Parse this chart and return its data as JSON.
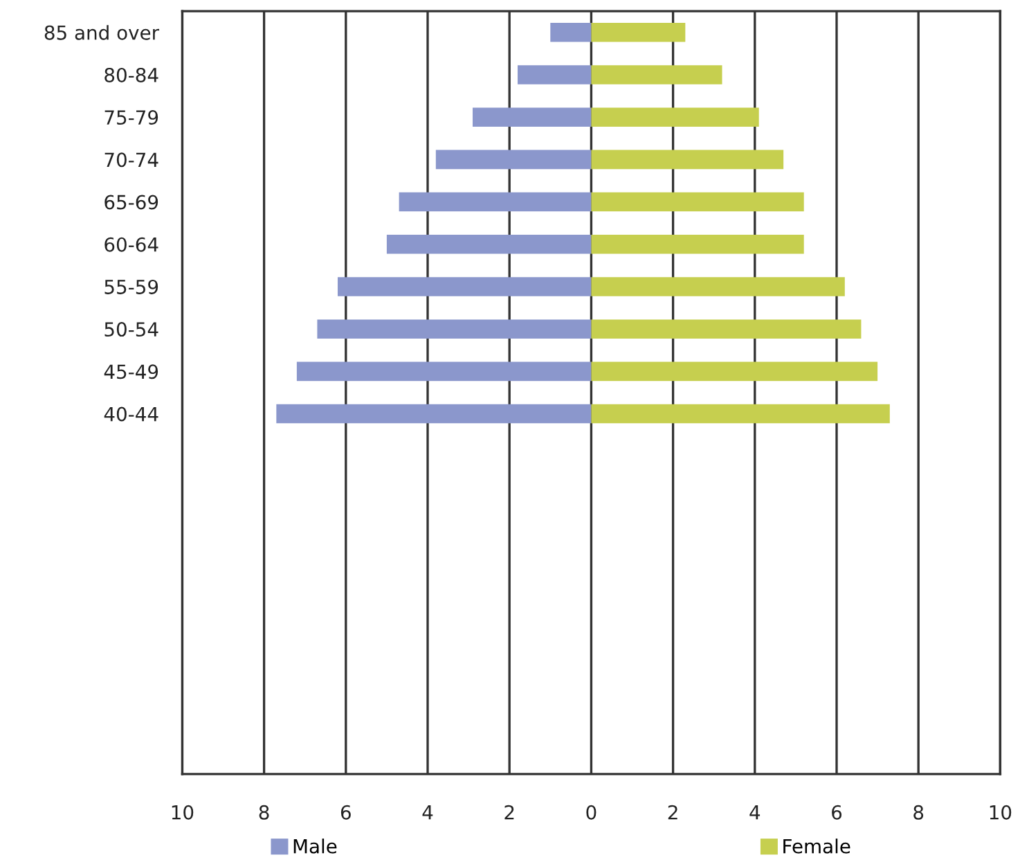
{
  "chart_data": {
    "type": "bar",
    "orientation": "horizontal",
    "categories": [
      "85 and over",
      "80-84",
      "75-79",
      "70-74",
      "65-69",
      "60-64",
      "55-59",
      "50-54",
      "45-49",
      "40-44",
      null,
      null,
      null,
      null,
      null,
      null,
      null,
      null
    ],
    "series": [
      {
        "name": "Male",
        "color": "#8b97cc",
        "values": [
          -1.0,
          -1.8,
          -2.9,
          -3.8,
          -4.7,
          -5.0,
          -6.2,
          -6.7,
          -7.2,
          -7.7,
          null,
          null,
          null,
          null,
          null,
          null,
          null,
          null
        ]
      },
      {
        "name": "Female",
        "color": "#c6cf4f",
        "values": [
          2.3,
          3.2,
          4.1,
          4.7,
          5.2,
          5.2,
          6.2,
          6.6,
          7.0,
          7.3,
          null,
          null,
          null,
          null,
          null,
          null,
          null,
          null
        ]
      }
    ],
    "xlim": [
      -10,
      10
    ],
    "xticks": [
      {
        "value": -10,
        "label": "10"
      },
      {
        "value": -8,
        "label": "8"
      },
      {
        "value": -6,
        "label": "6"
      },
      {
        "value": -4,
        "label": "4"
      },
      {
        "value": -2,
        "label": "2"
      },
      0,
      2,
      4,
      6,
      8,
      10
    ],
    "grid": "x",
    "legend": "bottom",
    "stacked": true
  }
}
